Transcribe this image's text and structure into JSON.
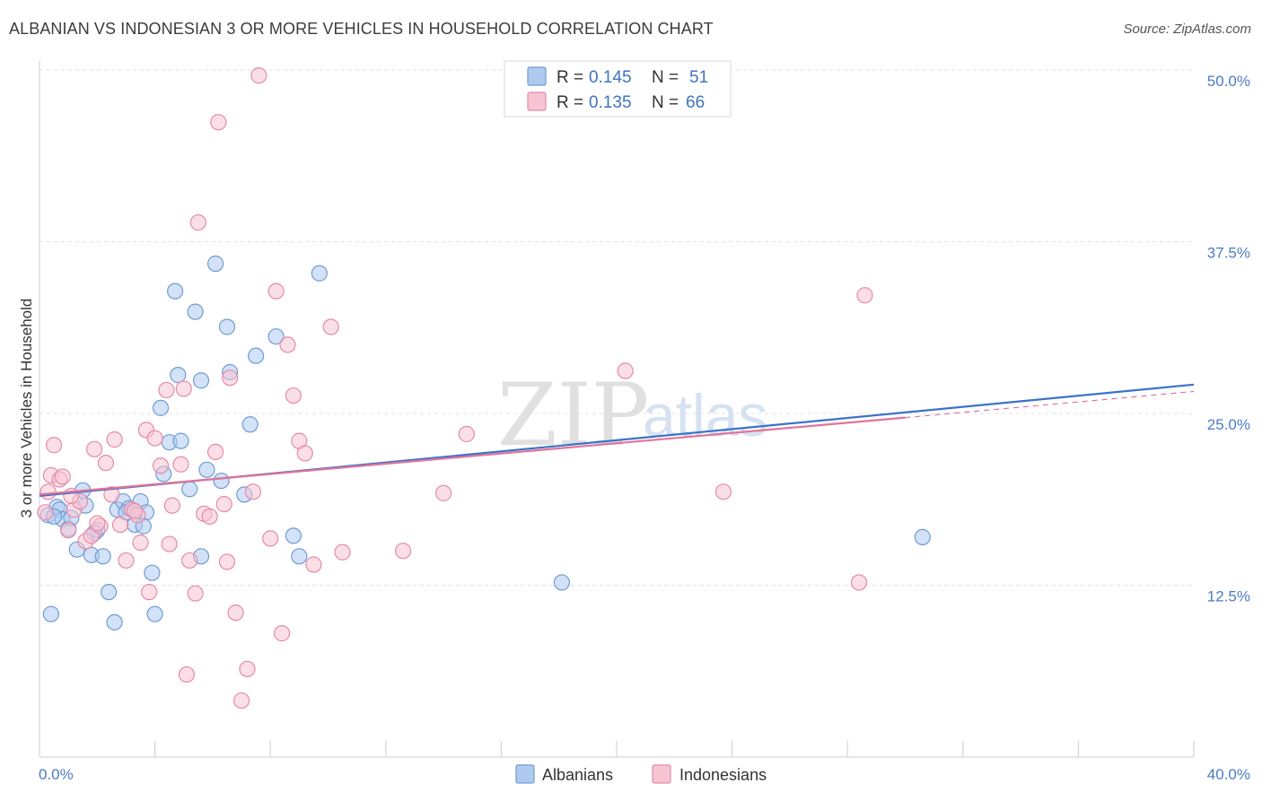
{
  "title": "ALBANIAN VS INDONESIAN 3 OR MORE VEHICLES IN HOUSEHOLD CORRELATION CHART",
  "source": "Source: ZipAtlas.com",
  "watermark": {
    "zip": "ZIP",
    "atlas": "atlas"
  },
  "colors": {
    "albanian_fill": "#aecbef",
    "albanian_stroke": "#6f9bd6",
    "albanian_line": "#3a73c8",
    "indonesian_fill": "#f7c4d3",
    "indonesian_stroke": "#e58aa8",
    "indonesian_line": "#e0749a",
    "grid": "#e2e2e2",
    "tick_label": "#4a7cc7"
  },
  "legend": {
    "r_label": "R =",
    "n_label": "N =",
    "entries": [
      {
        "r": "0.145",
        "n": "51"
      },
      {
        "r": "0.135",
        "n": "66"
      }
    ]
  },
  "chart_data": {
    "type": "scatter",
    "title": "ALBANIAN VS INDONESIAN 3 OR MORE VEHICLES IN HOUSEHOLD CORRELATION CHART",
    "xlabel": "",
    "ylabel": "3 or more Vehicles in Household",
    "xlim": [
      0,
      40
    ],
    "ylim": [
      0,
      50
    ],
    "x_tick_labels": [
      "0.0%",
      "40.0%"
    ],
    "y_ticks": [
      12.5,
      25.0,
      37.5,
      50.0
    ],
    "y_tick_labels": [
      "12.5%",
      "25.0%",
      "37.5%",
      "50.0%"
    ],
    "grid": true,
    "legend_placement": "top-center",
    "series": [
      {
        "name": "Albanians",
        "r": 0.145,
        "n": 51,
        "trend": {
          "x": [
            0,
            40
          ],
          "y": [
            19.0,
            27.1
          ]
        },
        "points": [
          [
            0.3,
            17.6
          ],
          [
            0.4,
            10.4
          ],
          [
            0.6,
            18.2
          ],
          [
            0.7,
            18.0
          ],
          [
            0.8,
            17.3
          ],
          [
            1.0,
            16.6
          ],
          [
            1.1,
            17.4
          ],
          [
            1.3,
            15.1
          ],
          [
            1.5,
            19.4
          ],
          [
            1.6,
            18.3
          ],
          [
            1.8,
            14.7
          ],
          [
            2.0,
            16.5
          ],
          [
            2.2,
            14.6
          ],
          [
            2.4,
            12.0
          ],
          [
            2.6,
            9.8
          ],
          [
            2.7,
            18.0
          ],
          [
            2.9,
            18.6
          ],
          [
            3.1,
            18.1
          ],
          [
            3.3,
            16.9
          ],
          [
            3.5,
            18.6
          ],
          [
            3.7,
            17.8
          ],
          [
            3.9,
            13.4
          ],
          [
            4.0,
            10.4
          ],
          [
            4.2,
            25.4
          ],
          [
            4.3,
            20.6
          ],
          [
            4.5,
            22.9
          ],
          [
            4.7,
            33.9
          ],
          [
            4.8,
            27.8
          ],
          [
            4.9,
            23.0
          ],
          [
            5.2,
            19.5
          ],
          [
            5.4,
            32.4
          ],
          [
            5.6,
            27.4
          ],
          [
            5.6,
            14.6
          ],
          [
            5.8,
            20.9
          ],
          [
            6.1,
            35.9
          ],
          [
            6.3,
            20.1
          ],
          [
            6.5,
            31.3
          ],
          [
            6.6,
            28.0
          ],
          [
            7.1,
            19.1
          ],
          [
            7.3,
            24.2
          ],
          [
            7.5,
            29.2
          ],
          [
            8.2,
            30.6
          ],
          [
            8.8,
            16.1
          ],
          [
            9.0,
            14.6
          ],
          [
            9.7,
            35.2
          ],
          [
            3.0,
            17.8
          ],
          [
            3.6,
            16.8
          ],
          [
            1.9,
            16.3
          ],
          [
            0.5,
            17.5
          ],
          [
            18.1,
            12.7
          ],
          [
            30.6,
            16.0
          ]
        ]
      },
      {
        "name": "Indonesians",
        "r": 0.135,
        "n": 66,
        "trend": {
          "x": [
            0,
            30
          ],
          "y": [
            19.1,
            24.7
          ]
        },
        "trend_dashed": {
          "x": [
            30,
            40
          ],
          "y": [
            24.7,
            26.6
          ]
        },
        "points": [
          [
            0.2,
            17.8
          ],
          [
            0.3,
            19.3
          ],
          [
            0.4,
            20.5
          ],
          [
            0.5,
            22.7
          ],
          [
            0.7,
            20.2
          ],
          [
            0.8,
            20.4
          ],
          [
            1.0,
            16.5
          ],
          [
            1.2,
            18.0
          ],
          [
            1.4,
            18.6
          ],
          [
            1.6,
            15.7
          ],
          [
            1.8,
            16.1
          ],
          [
            1.9,
            22.4
          ],
          [
            2.1,
            16.8
          ],
          [
            2.3,
            21.4
          ],
          [
            2.5,
            19.1
          ],
          [
            2.6,
            23.1
          ],
          [
            2.8,
            16.9
          ],
          [
            3.0,
            14.3
          ],
          [
            3.2,
            18.0
          ],
          [
            3.4,
            17.6
          ],
          [
            3.5,
            15.6
          ],
          [
            3.7,
            23.8
          ],
          [
            3.8,
            12.0
          ],
          [
            4.0,
            23.2
          ],
          [
            4.2,
            21.2
          ],
          [
            4.4,
            26.7
          ],
          [
            4.5,
            15.5
          ],
          [
            4.6,
            18.3
          ],
          [
            4.9,
            21.3
          ],
          [
            5.0,
            26.8
          ],
          [
            5.2,
            14.3
          ],
          [
            5.4,
            11.9
          ],
          [
            5.5,
            38.9
          ],
          [
            5.7,
            17.7
          ],
          [
            5.9,
            17.5
          ],
          [
            6.1,
            22.2
          ],
          [
            6.2,
            46.2
          ],
          [
            6.4,
            18.4
          ],
          [
            6.5,
            14.2
          ],
          [
            6.6,
            27.6
          ],
          [
            6.8,
            10.5
          ],
          [
            7.0,
            4.1
          ],
          [
            7.2,
            6.4
          ],
          [
            7.4,
            19.3
          ],
          [
            7.6,
            49.6
          ],
          [
            8.0,
            15.9
          ],
          [
            8.2,
            33.9
          ],
          [
            8.4,
            9.0
          ],
          [
            8.6,
            30.0
          ],
          [
            8.8,
            26.3
          ],
          [
            9.0,
            23.0
          ],
          [
            9.2,
            22.1
          ],
          [
            9.5,
            14.0
          ],
          [
            10.1,
            31.3
          ],
          [
            10.5,
            14.9
          ],
          [
            12.6,
            15.0
          ],
          [
            14.0,
            19.2
          ],
          [
            14.8,
            23.5
          ],
          [
            20.3,
            28.1
          ],
          [
            23.7,
            19.3
          ],
          [
            28.4,
            12.7
          ],
          [
            28.6,
            33.6
          ],
          [
            5.1,
            6.0
          ],
          [
            2.0,
            17.0
          ],
          [
            1.1,
            19.0
          ],
          [
            3.3,
            17.9
          ]
        ]
      }
    ]
  }
}
